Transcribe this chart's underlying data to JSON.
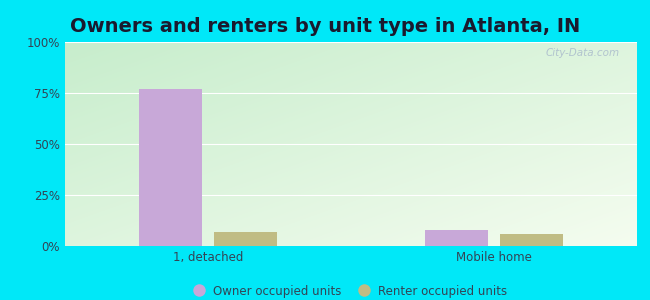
{
  "title": "Owners and renters by unit type in Atlanta, IN",
  "categories": [
    "1, detached",
    "Mobile home"
  ],
  "owner_values": [
    77,
    8
  ],
  "renter_values": [
    7,
    6
  ],
  "owner_color": "#c8a8d8",
  "renter_color": "#c0bc84",
  "ylim": [
    0,
    100
  ],
  "yticks": [
    0,
    25,
    50,
    75,
    100
  ],
  "ytick_labels": [
    "0%",
    "25%",
    "50%",
    "75%",
    "100%"
  ],
  "background_outer": "#00e8f8",
  "title_fontsize": 14,
  "legend_labels": [
    "Owner occupied units",
    "Renter occupied units"
  ],
  "watermark": "City-Data.com",
  "grid_color": "#ffffff",
  "tick_color": "#555566",
  "label_color": "#334455"
}
